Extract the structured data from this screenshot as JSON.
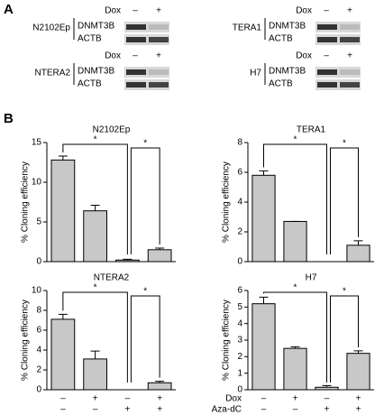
{
  "panel_a": {
    "label": "A",
    "blots": [
      {
        "cell": "N2102Ep",
        "treatment": "Dox",
        "signs": [
          "–",
          "+"
        ],
        "bands": [
          "DNMT3B",
          "ACTB"
        ]
      },
      {
        "cell": "TERA1",
        "treatment": "Dox",
        "signs": [
          "–",
          "+"
        ],
        "bands": [
          "DNMT3B",
          "ACTB"
        ]
      },
      {
        "cell": "NTERA2",
        "treatment": "Dox",
        "signs": [
          "–",
          "+"
        ],
        "bands": [
          "DNMT3B",
          "ACTB"
        ]
      },
      {
        "cell": "H7",
        "treatment": "Dox",
        "signs": [
          "–",
          "+"
        ],
        "bands": [
          "DNMT3B",
          "ACTB"
        ]
      }
    ]
  },
  "panel_b_label": "B",
  "conditions": [
    {
      "name": "Dox",
      "signs": [
        "–",
        "+",
        "–",
        "+"
      ]
    },
    {
      "name": "Aza-dC",
      "signs": [
        "–",
        "–",
        "+",
        "+"
      ]
    }
  ],
  "chart_data": [
    {
      "type": "bar",
      "title": "N2102Ep",
      "ylabel": "% Cloning efficiency",
      "values": [
        12.8,
        6.4,
        0.2,
        1.5
      ],
      "errors": [
        0.5,
        0.7,
        0.1,
        0.2
      ],
      "color": "#c8c8c8",
      "ylim": [
        0,
        15
      ],
      "yticks": [
        0,
        5,
        10,
        15
      ],
      "annotations": [
        "*",
        "*"
      ]
    },
    {
      "type": "bar",
      "title": "TERA1",
      "ylabel": "% Cloning efficiency",
      "values": [
        5.8,
        2.7,
        0,
        1.1
      ],
      "errors": [
        0.3,
        0,
        0,
        0.3
      ],
      "color": "#c8c8c8",
      "ylim": [
        0,
        8
      ],
      "yticks": [
        0,
        2,
        4,
        6,
        8
      ],
      "annotations": [
        "*",
        "*"
      ]
    },
    {
      "type": "bar",
      "title": "NTERA2",
      "ylabel": "% Cloning efficiency",
      "values": [
        7.1,
        3.1,
        0,
        0.7
      ],
      "errors": [
        0.5,
        0.8,
        0,
        0.15
      ],
      "color": "#c8c8c8",
      "ylim": [
        0,
        10
      ],
      "yticks": [
        0,
        2,
        4,
        6,
        8,
        10
      ],
      "annotations": [
        "*",
        "*"
      ]
    },
    {
      "type": "bar",
      "title": "H7",
      "ylabel": "% Cloning efficiency",
      "values": [
        5.2,
        2.5,
        0.15,
        2.2
      ],
      "errors": [
        0.4,
        0.1,
        0.1,
        0.15
      ],
      "color": "#c8c8c8",
      "ylim": [
        0,
        6
      ],
      "yticks": [
        0,
        1,
        2,
        3,
        4,
        5,
        6
      ],
      "annotations": [
        "*",
        "*"
      ]
    }
  ]
}
